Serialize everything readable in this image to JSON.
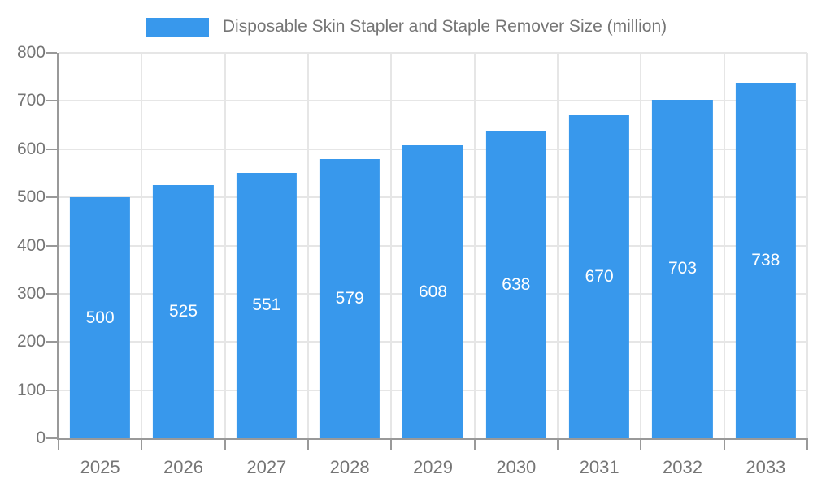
{
  "legend": {
    "label": "Disposable Skin Stapler and Staple Remover Size (million)"
  },
  "colors": {
    "bar": "#3898EC",
    "value_label": "#ffffff",
    "grid": "#e6e6e6",
    "axis": "#999999",
    "text": "#757575",
    "background": "#ffffff"
  },
  "chart_data": {
    "type": "bar",
    "title": "Disposable Skin Stapler and Staple Remover Size (million)",
    "categories": [
      "2025",
      "2026",
      "2027",
      "2028",
      "2029",
      "2030",
      "2031",
      "2032",
      "2033"
    ],
    "values": [
      500,
      525,
      551,
      579,
      608,
      638,
      670,
      703,
      738
    ],
    "xlabel": "",
    "ylabel": "",
    "ylim": [
      0,
      800
    ],
    "y_ticks": [
      0,
      100,
      200,
      300,
      400,
      500,
      600,
      700,
      800
    ],
    "grid": true,
    "legend_position": "top",
    "value_labels": "inside-center"
  }
}
